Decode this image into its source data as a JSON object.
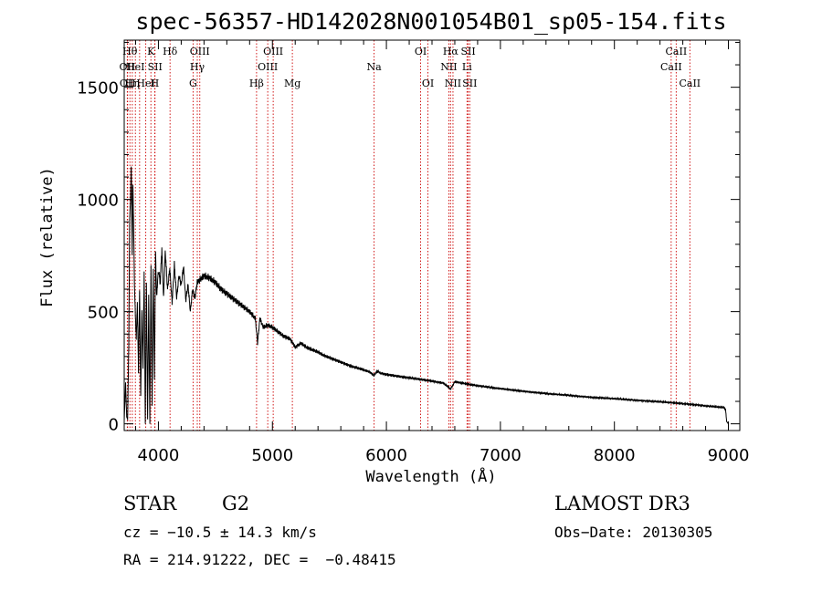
{
  "chart_data": {
    "type": "line",
    "title": "spec-56357-HD142028N001054B01_sp05-154.fits",
    "xlabel": "Wavelength (Å)",
    "ylabel": "Flux (relative)",
    "xlim": [
      3700,
      9100
    ],
    "ylim": [
      -30,
      1710
    ],
    "xticks": [
      4000,
      5000,
      6000,
      7000,
      8000,
      9000
    ],
    "yticks": [
      0,
      500,
      1000,
      1500
    ],
    "series": [
      {
        "name": "flux",
        "x": [
          3700,
          3712,
          3722,
          3730,
          3740,
          3748,
          3755,
          3762,
          3770,
          3776,
          3782,
          3790,
          3798,
          3806,
          3815,
          3825,
          3835,
          3845,
          3855,
          3865,
          3875,
          3885,
          3895,
          3905,
          3915,
          3925,
          3935,
          3945,
          3955,
          3965,
          3975,
          3985,
          3995,
          4005,
          4015,
          4030,
          4045,
          4060,
          4080,
          4100,
          4120,
          4140,
          4160,
          4180,
          4200,
          4220,
          4240,
          4260,
          4280,
          4300,
          4320,
          4340,
          4360,
          4380,
          4400,
          4450,
          4500,
          4550,
          4600,
          4650,
          4700,
          4750,
          4800,
          4850,
          4870,
          4890,
          4920,
          4960,
          5000,
          5050,
          5100,
          5150,
          5180,
          5200,
          5250,
          5300,
          5350,
          5400,
          5450,
          5500,
          5550,
          5600,
          5650,
          5700,
          5750,
          5800,
          5850,
          5890,
          5920,
          5950,
          6000,
          6100,
          6200,
          6300,
          6400,
          6500,
          6563,
          6600,
          6700,
          6800,
          6900,
          7000,
          7200,
          7400,
          7600,
          7800,
          8000,
          8200,
          8400,
          8500,
          8600,
          8700,
          8800,
          8900,
          8960,
          8975,
          8985,
          9000
        ],
        "y": [
          10,
          180,
          30,
          20,
          350,
          900,
          1000,
          1150,
          750,
          1080,
          900,
          620,
          480,
          380,
          540,
          230,
          600,
          120,
          500,
          250,
          680,
          0,
          640,
          20,
          560,
          0,
          720,
          80,
          690,
          200,
          760,
          560,
          660,
          680,
          620,
          780,
          560,
          770,
          600,
          690,
          540,
          710,
          560,
          660,
          620,
          700,
          550,
          620,
          500,
          600,
          560,
          630,
          640,
          650,
          660,
          650,
          630,
          600,
          580,
          560,
          540,
          520,
          500,
          470,
          360,
          470,
          430,
          440,
          430,
          410,
          390,
          380,
          360,
          340,
          360,
          340,
          330,
          320,
          305,
          295,
          285,
          275,
          265,
          255,
          248,
          240,
          232,
          215,
          235,
          225,
          220,
          212,
          205,
          198,
          190,
          182,
          155,
          188,
          178,
          170,
          163,
          157,
          145,
          135,
          127,
          118,
          112,
          105,
          98,
          94,
          90,
          86,
          80,
          75,
          72,
          65,
          10,
          0
        ]
      }
    ],
    "lines": [
      {
        "w": 3727,
        "label": "OII",
        "row": 2
      },
      {
        "w": 3730,
        "label": "OII",
        "row": 3
      },
      {
        "w": 3750,
        "label": "Hθ",
        "row": 1
      },
      {
        "w": 3771,
        "label": "Hη",
        "row": 3
      },
      {
        "w": 3798,
        "label": "HeI",
        "row": 2
      },
      {
        "w": 3835,
        "label": "",
        "row": 0
      },
      {
        "w": 3889,
        "label": "HeI",
        "row": 3
      },
      {
        "w": 3934,
        "label": "K",
        "row": 1
      },
      {
        "w": 3968,
        "label": "H",
        "row": 3
      },
      {
        "w": 3970,
        "label": "SII",
        "row": 2
      },
      {
        "w": 4102,
        "label": "Hδ",
        "row": 1
      },
      {
        "w": 4304,
        "label": "G",
        "row": 3
      },
      {
        "w": 4341,
        "label": "Hγ",
        "row": 2
      },
      {
        "w": 4363,
        "label": "OIII",
        "row": 1
      },
      {
        "w": 4861,
        "label": "Hβ",
        "row": 3
      },
      {
        "w": 4959,
        "label": "OIII",
        "row": 2
      },
      {
        "w": 5007,
        "label": "OIII",
        "row": 1
      },
      {
        "w": 5175,
        "label": "Mg",
        "row": 3
      },
      {
        "w": 5892,
        "label": "Na",
        "row": 2
      },
      {
        "w": 6300,
        "label": "OI",
        "row": 1
      },
      {
        "w": 6364,
        "label": "OI",
        "row": 3
      },
      {
        "w": 6548,
        "label": "NII",
        "row": 2
      },
      {
        "w": 6563,
        "label": "Hα",
        "row": 1
      },
      {
        "w": 6584,
        "label": "NII",
        "row": 3
      },
      {
        "w": 6707,
        "label": "Li",
        "row": 2
      },
      {
        "w": 6717,
        "label": "SII",
        "row": 1
      },
      {
        "w": 6731,
        "label": "SII",
        "row": 3
      },
      {
        "w": 8498,
        "label": "CaII",
        "row": 2
      },
      {
        "w": 8542,
        "label": "CaII",
        "row": 1
      },
      {
        "w": 8662,
        "label": "CaII",
        "row": 3
      }
    ]
  },
  "info": {
    "object_class": "STAR",
    "subclass": "G2",
    "redshift": "cz = −10.5 ± 14.3 km/s",
    "coords": "RA = 214.91222, DEC =  −0.48415",
    "survey": "LAMOST DR3",
    "obs_date": "Obs−Date: 20130305"
  },
  "colors": {
    "spectrum": "#000000",
    "line_marker": "#cc0000",
    "frame": "#000000"
  }
}
